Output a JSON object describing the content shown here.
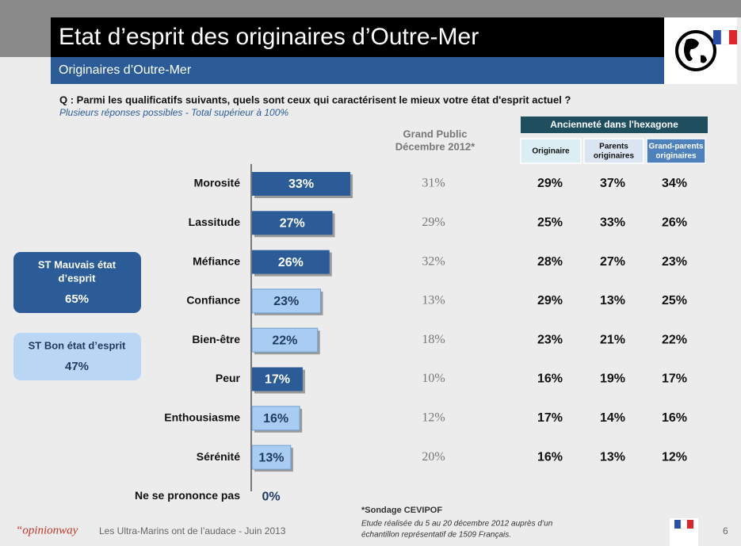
{
  "header": {
    "title": "Etat d’esprit des originaires d’Outre-Mer",
    "subtitle": "Originaires d’Outre-Mer"
  },
  "question": "Q : Parmi les qualificatifs suivants, quels sont ceux qui caractérisent le mieux votre état d'esprit actuel ?",
  "note": "Plusieurs réponses possibles - Total supérieur à 100%",
  "summary": [
    {
      "label": [
        "ST Mauvais état",
        "d’esprit"
      ],
      "value": "65%"
    },
    {
      "label": [
        "ST Bon état d’esprit"
      ],
      "value": "47%"
    }
  ],
  "chart_data": {
    "type": "bar",
    "orientation": "horizontal",
    "categories": [
      "Morosité",
      "Lassitude",
      "Méfiance",
      "Confiance",
      "Bien-être",
      "Peur",
      "Enthousiasme",
      "Sérénité",
      "Ne se prononce pas"
    ],
    "values": [
      33,
      27,
      26,
      23,
      22,
      17,
      16,
      13,
      0
    ],
    "value_labels": [
      "33%",
      "27%",
      "26%",
      "23%",
      "22%",
      "17%",
      "16%",
      "13%",
      "0%"
    ],
    "colors": [
      "#2b5c98",
      "#2b5c98",
      "#2b5c98",
      "#a9cdf2",
      "#a9cdf2",
      "#2b5c98",
      "#a9cdf2",
      "#a9cdf2",
      "#a9cdf2"
    ]
  },
  "table": {
    "reference": {
      "header": [
        "Grand Public",
        "Décembre 2012*"
      ],
      "values": [
        "31%",
        "29%",
        "32%",
        "13%",
        "18%",
        "10%",
        "12%",
        "20%",
        null
      ]
    },
    "group": "Ancienneté dans l'hexagone",
    "columns": [
      {
        "header": [
          "Originaire"
        ],
        "values": [
          "29%",
          "25%",
          "28%",
          "29%",
          "23%",
          "16%",
          "17%",
          "16%",
          null
        ]
      },
      {
        "header": [
          "Parents",
          "originaires"
        ],
        "values": [
          "37%",
          "33%",
          "27%",
          "13%",
          "21%",
          "19%",
          "14%",
          "13%",
          null
        ]
      },
      {
        "header": [
          "Grand-parents",
          "originaires"
        ],
        "values": [
          "34%",
          "26%",
          "23%",
          "25%",
          "22%",
          "17%",
          "16%",
          "12%",
          null
        ]
      }
    ]
  },
  "footer": {
    "brand": "“opinionway",
    "study": "Les Ultra-Marins ont de l’audace - Juin 2013",
    "source": "*Sondage CEVIPOF",
    "method": [
      "Etude réalisée du 5 au 20 décembre 2012 auprès d’un",
      "échantillon représentatif de 1509 Français."
    ],
    "page": "6"
  }
}
